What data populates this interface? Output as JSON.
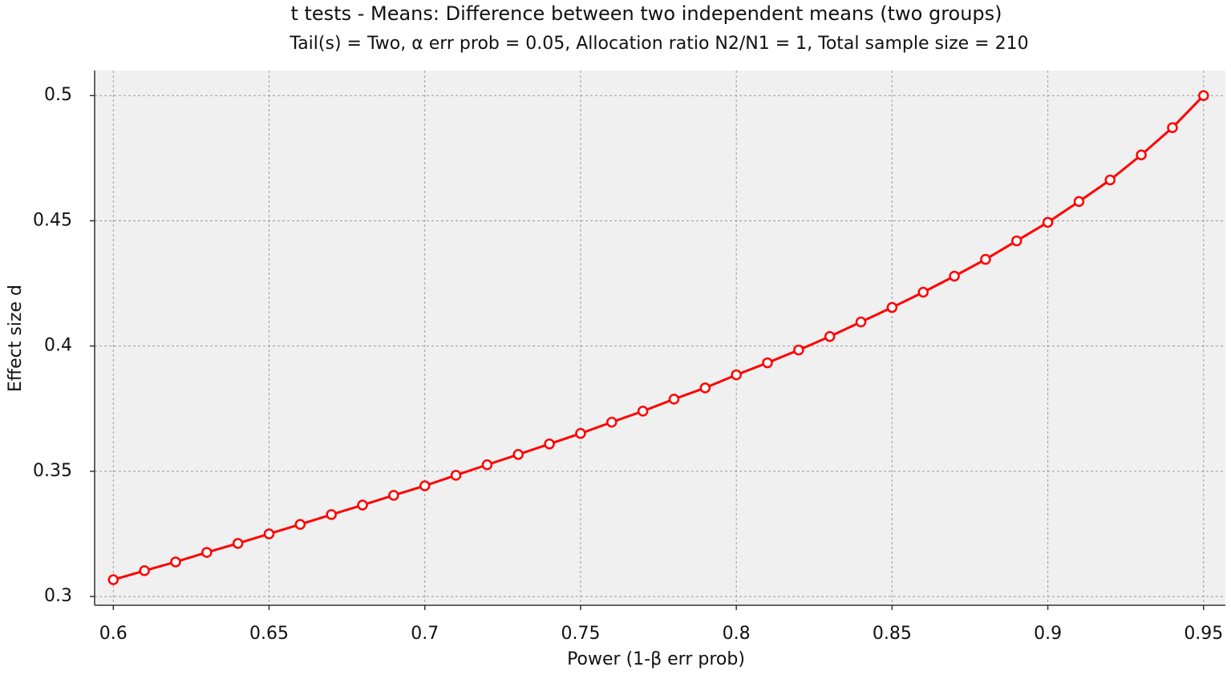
{
  "chart_data": {
    "type": "line",
    "title": "t tests - Means: Difference between two independent means (two groups)",
    "subtitle": "Tail(s) = Two, α err prob = 0.05, Allocation ratio N2/N1 = 1, Total sample size = 210",
    "x_label": "Power (1-β err prob)",
    "y_label": "Effect size d",
    "x": [
      0.6,
      0.61,
      0.62,
      0.63,
      0.64,
      0.65,
      0.66,
      0.67,
      0.68,
      0.69,
      0.7,
      0.71,
      0.72,
      0.73,
      0.74,
      0.75,
      0.76,
      0.77,
      0.78,
      0.79,
      0.8,
      0.81,
      0.82,
      0.83,
      0.84,
      0.85,
      0.86,
      0.87,
      0.88,
      0.89,
      0.9,
      0.91,
      0.92,
      0.93,
      0.94,
      0.95
    ],
    "series": [
      {
        "name": "Effect size d",
        "color": "#ff0000",
        "values": [
          0.3067,
          0.3103,
          0.3138,
          0.3176,
          0.3212,
          0.325,
          0.3288,
          0.3327,
          0.3365,
          0.3404,
          0.3442,
          0.3484,
          0.3526,
          0.3567,
          0.3609,
          0.3651,
          0.3696,
          0.374,
          0.3788,
          0.3833,
          0.3885,
          0.3933,
          0.3984,
          0.4038,
          0.4096,
          0.4154,
          0.4215,
          0.4279,
          0.4346,
          0.442,
          0.4494,
          0.4577,
          0.4663,
          0.4763,
          0.4872,
          0.5
        ]
      }
    ],
    "xlim": [
      0.594,
      0.957
    ],
    "ylim": [
      0.2965,
      0.51
    ],
    "xticks": [
      0.6,
      0.65,
      0.7,
      0.75,
      0.8,
      0.85,
      0.9,
      0.95
    ],
    "yticks": [
      0.3,
      0.35,
      0.4,
      0.45,
      0.5
    ],
    "grid": true
  }
}
